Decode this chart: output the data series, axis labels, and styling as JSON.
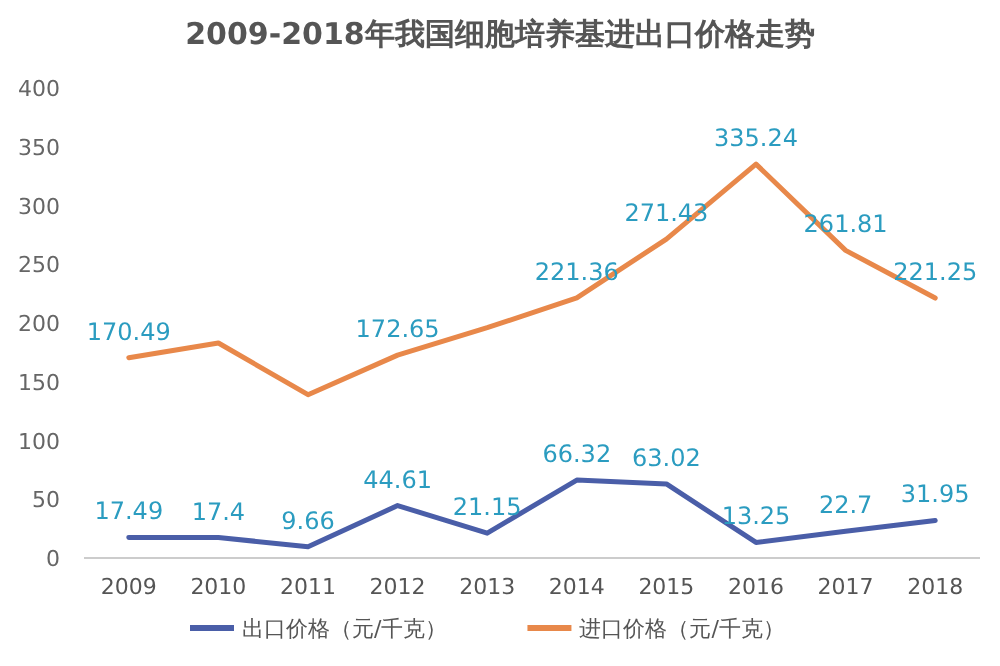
{
  "chart_data": {
    "type": "line",
    "title": "2009-2018年我国细胞培养基进出口价格走势",
    "categories": [
      "2009",
      "2010",
      "2011",
      "2012",
      "2013",
      "2014",
      "2015",
      "2016",
      "2017",
      "2018"
    ],
    "series": [
      {
        "name": "出口价格（元/千克）",
        "color": "#4a5ea8",
        "values": [
          17.49,
          17.4,
          9.66,
          44.61,
          21.15,
          66.32,
          63.02,
          13.25,
          22.7,
          31.95
        ],
        "value_labels": [
          "17.49",
          "17.4",
          "9.66",
          "44.61",
          "21.15",
          "66.32",
          "63.02",
          "13.25",
          "22.7",
          "31.95"
        ]
      },
      {
        "name": "进口价格（元/千克）",
        "color": "#e8884a",
        "values": [
          170.49,
          183,
          139,
          172.65,
          196,
          221.36,
          271.43,
          335.24,
          261.81,
          221.25
        ],
        "value_labels": [
          "170.49",
          null,
          null,
          "172.65",
          null,
          "221.36",
          "271.43",
          "335.24",
          "261.81",
          "221.25"
        ]
      }
    ],
    "ylim": [
      0,
      400
    ],
    "yticks": [
      0,
      50,
      100,
      150,
      200,
      250,
      300,
      350,
      400
    ],
    "grid": false,
    "legend": "bottom",
    "marker": "none",
    "line_style": "solid"
  }
}
